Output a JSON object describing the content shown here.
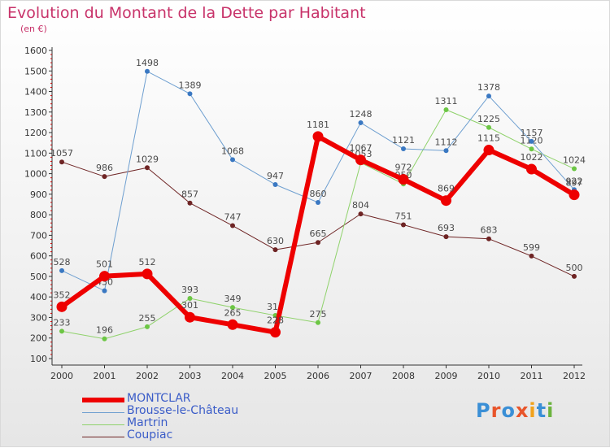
{
  "chart_data": {
    "type": "line",
    "title": "Evolution du Montant de la Dette par Habitant",
    "subtitle": "(en €)",
    "x": [
      "2000",
      "2001",
      "2002",
      "2003",
      "2004",
      "2005",
      "2006",
      "2007",
      "2008",
      "2009",
      "2010",
      "2011",
      "2012"
    ],
    "ylim": [
      100,
      1600
    ],
    "yticks": [
      100,
      200,
      300,
      400,
      500,
      600,
      700,
      800,
      900,
      1000,
      1100,
      1200,
      1300,
      1400,
      1500,
      1600
    ],
    "grid": false,
    "legend_position": "bottom-left",
    "series": [
      {
        "name": "Coupiac",
        "color": "#6e2424",
        "width": 1,
        "values": [
          1057,
          986,
          1029,
          857,
          747,
          630,
          665,
          804,
          751,
          693,
          683,
          599,
          500
        ],
        "labels": [
          "1057",
          "986",
          "1029",
          "857",
          "747",
          "630",
          "665",
          "804",
          "751",
          "693",
          "683",
          "599",
          "500"
        ]
      },
      {
        "name": "Martrin",
        "color": "#8fd26b",
        "marker": "#6cc644",
        "width": 1,
        "values": [
          233,
          196,
          255,
          393,
          349,
          310,
          275,
          1053,
          950,
          1311,
          1225,
          1120,
          1024
        ],
        "labels": [
          "233",
          "196",
          "255",
          "393",
          "349",
          "310",
          "275",
          "1053",
          "950",
          "1311",
          "1225",
          "1120",
          "1024"
        ]
      },
      {
        "name": "Brousse-le-Château",
        "color": "#6e9fd0",
        "marker": "#3a78c2",
        "width": 1,
        "values": [
          528,
          430,
          1498,
          1389,
          1068,
          947,
          860,
          1248,
          1121,
          1112,
          1378,
          1157,
          922
        ],
        "labels": [
          "528",
          "430",
          "1498",
          "1389",
          "1068",
          "947",
          "860",
          "1248",
          "1121",
          "1112",
          "1378",
          "1157",
          "922"
        ]
      },
      {
        "name": "MONTCLAR",
        "color": "#ee0000",
        "width": 6,
        "values": [
          352,
          501,
          512,
          301,
          265,
          228,
          1181,
          1067,
          972,
          869,
          1115,
          1022,
          897
        ],
        "labels": [
          "352",
          "501",
          "512",
          "301",
          "265",
          "228",
          "1181",
          "1067",
          "972",
          "869",
          "1115",
          "1022",
          "897"
        ]
      }
    ],
    "legend_order": [
      "MONTCLAR",
      "Brousse-le-Château",
      "Martrin",
      "Coupiac"
    ]
  },
  "legend": [
    {
      "label": "MONTCLAR",
      "color": "#ee0000",
      "thickness": 6
    },
    {
      "label": "Brousse-le-Château",
      "color": "#6e9fd0",
      "thickness": 1
    },
    {
      "label": "Martrin",
      "color": "#8fd26b",
      "thickness": 1
    },
    {
      "label": "Coupiac",
      "color": "#6e2424",
      "thickness": 1
    }
  ],
  "logo": {
    "text": "Proxiti",
    "colors": [
      "#3a8fd6",
      "#e8552b",
      "#3a8fd6",
      "#e8552b",
      "#f1a21c",
      "#3a8fd6",
      "#6cb33e"
    ]
  }
}
